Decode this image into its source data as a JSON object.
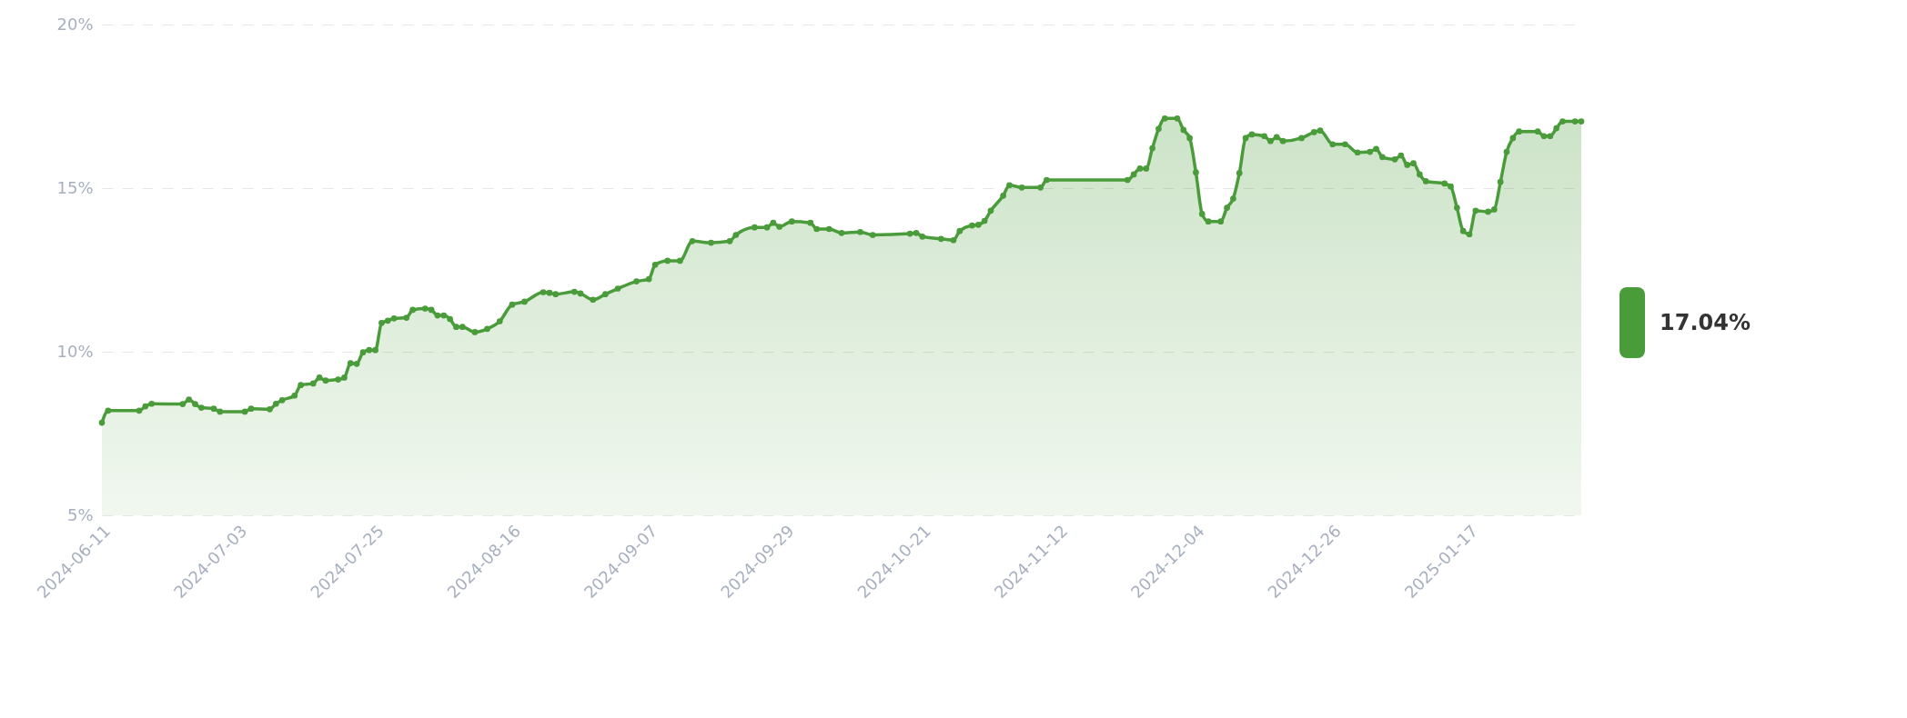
{
  "chart_data": {
    "type": "area",
    "color": "#4a9c3a",
    "marker": "circle",
    "line_style": "solid",
    "grid": "y",
    "annotations": [
      "17.04%"
    ],
    "xlim": [
      "2024-06-11",
      "2025-02-04"
    ],
    "xticks": [
      "2024-06-11",
      "2024-07-03",
      "2024-07-25",
      "2024-08-16",
      "2024-09-07",
      "2024-09-29",
      "2024-10-21",
      "2024-11-12",
      "2024-12-04",
      "2024-12-26",
      "2025-01-17"
    ],
    "ylim": [
      5,
      20
    ],
    "yticks": [
      {
        "value": 5,
        "label": "5%"
      },
      {
        "value": 10,
        "label": "10%"
      },
      {
        "value": 15,
        "label": "15%"
      },
      {
        "value": 20,
        "label": "20%"
      }
    ],
    "x": [
      "2024-06-11",
      "2024-06-12",
      "2024-06-17",
      "2024-06-18",
      "2024-06-19",
      "2024-06-24",
      "2024-06-25",
      "2024-06-26",
      "2024-06-27",
      "2024-06-29",
      "2024-06-30",
      "2024-07-04",
      "2024-07-05",
      "2024-07-08",
      "2024-07-09",
      "2024-07-10",
      "2024-07-12",
      "2024-07-13",
      "2024-07-15",
      "2024-07-16",
      "2024-07-17",
      "2024-07-19",
      "2024-07-20",
      "2024-07-21",
      "2024-07-22",
      "2024-07-23",
      "2024-07-24",
      "2024-07-25",
      "2024-07-26",
      "2024-07-27",
      "2024-07-28",
      "2024-07-30",
      "2024-07-31",
      "2024-08-02",
      "2024-08-03",
      "2024-08-04",
      "2024-08-05",
      "2024-08-06",
      "2024-08-07",
      "2024-08-08",
      "2024-08-10",
      "2024-08-12",
      "2024-08-14",
      "2024-08-16",
      "2024-08-18",
      "2024-08-21",
      "2024-08-22",
      "2024-08-23",
      "2024-08-26",
      "2024-08-27",
      "2024-08-29",
      "2024-08-31",
      "2024-09-02",
      "2024-09-05",
      "2024-09-07",
      "2024-09-08",
      "2024-09-10",
      "2024-09-12",
      "2024-09-14",
      "2024-09-17",
      "2024-09-20",
      "2024-09-21",
      "2024-09-24",
      "2024-09-26",
      "2024-09-27",
      "2024-09-28",
      "2024-09-30",
      "2024-10-03",
      "2024-10-04",
      "2024-10-06",
      "2024-10-08",
      "2024-10-11",
      "2024-10-13",
      "2024-10-19",
      "2024-10-20",
      "2024-10-21",
      "2024-10-24",
      "2024-10-26",
      "2024-10-27",
      "2024-10-29",
      "2024-10-30",
      "2024-10-31",
      "2024-11-01",
      "2024-11-03",
      "2024-11-04",
      "2024-11-06",
      "2024-11-09",
      "2024-11-10",
      "2024-11-23",
      "2024-11-24",
      "2024-11-25",
      "2024-11-26",
      "2024-11-27",
      "2024-11-28",
      "2024-11-29",
      "2024-12-01",
      "2024-12-02",
      "2024-12-03",
      "2024-12-04",
      "2024-12-05",
      "2024-12-06",
      "2024-12-08",
      "2024-12-09",
      "2024-12-10",
      "2024-12-11",
      "2024-12-12",
      "2024-12-13",
      "2024-12-15",
      "2024-12-16",
      "2024-12-17",
      "2024-12-18",
      "2024-12-21",
      "2024-12-23",
      "2024-12-24",
      "2024-12-26",
      "2024-12-28",
      "2024-12-30",
      "2025-01-01",
      "2025-01-02",
      "2025-01-03",
      "2025-01-05",
      "2025-01-06",
      "2025-01-07",
      "2025-01-08",
      "2025-01-09",
      "2025-01-10",
      "2025-01-13",
      "2025-01-14",
      "2025-01-15",
      "2025-01-16",
      "2025-01-17",
      "2025-01-18",
      "2025-01-20",
      "2025-01-21",
      "2025-01-22",
      "2025-01-23",
      "2025-01-24",
      "2025-01-25",
      "2025-01-28",
      "2025-01-29",
      "2025-01-30",
      "2025-01-31",
      "2025-02-01",
      "2025-02-03",
      "2025-02-04"
    ],
    "values": [
      7.83,
      8.2,
      8.2,
      8.33,
      8.41,
      8.4,
      8.54,
      8.4,
      8.29,
      8.26,
      8.17,
      8.17,
      8.26,
      8.24,
      8.41,
      8.52,
      8.66,
      8.98,
      9.03,
      9.21,
      9.12,
      9.15,
      9.21,
      9.65,
      9.63,
      9.98,
      10.05,
      10.05,
      10.88,
      10.95,
      11.02,
      11.04,
      11.28,
      11.32,
      11.28,
      11.11,
      11.11,
      11.0,
      10.76,
      10.76,
      10.6,
      10.7,
      10.93,
      11.44,
      11.53,
      11.82,
      11.8,
      11.76,
      11.83,
      11.78,
      11.59,
      11.76,
      11.93,
      12.15,
      12.22,
      12.66,
      12.78,
      12.78,
      13.38,
      13.33,
      13.38,
      13.57,
      13.8,
      13.8,
      13.94,
      13.82,
      13.98,
      13.94,
      13.75,
      13.75,
      13.63,
      13.66,
      13.57,
      13.61,
      13.63,
      13.52,
      13.45,
      13.41,
      13.69,
      13.86,
      13.88,
      14.0,
      14.31,
      14.77,
      15.09,
      15.02,
      15.02,
      15.25,
      15.25,
      15.42,
      15.6,
      15.6,
      16.22,
      16.81,
      17.13,
      17.13,
      16.78,
      16.53,
      15.48,
      14.21,
      13.98,
      13.98,
      14.4,
      14.68,
      15.46,
      16.53,
      16.64,
      16.59,
      16.44,
      16.56,
      16.44,
      16.53,
      16.71,
      16.76,
      16.34,
      16.34,
      16.09,
      16.11,
      16.2,
      15.95,
      15.88,
      16.0,
      15.71,
      15.76,
      15.42,
      15.21,
      15.14,
      15.05,
      14.4,
      13.69,
      13.59,
      14.31,
      14.28,
      14.35,
      15.19,
      16.11,
      16.53,
      16.73,
      16.73,
      16.59,
      16.59,
      16.83,
      17.04,
      17.04,
      17.04
    ]
  }
}
